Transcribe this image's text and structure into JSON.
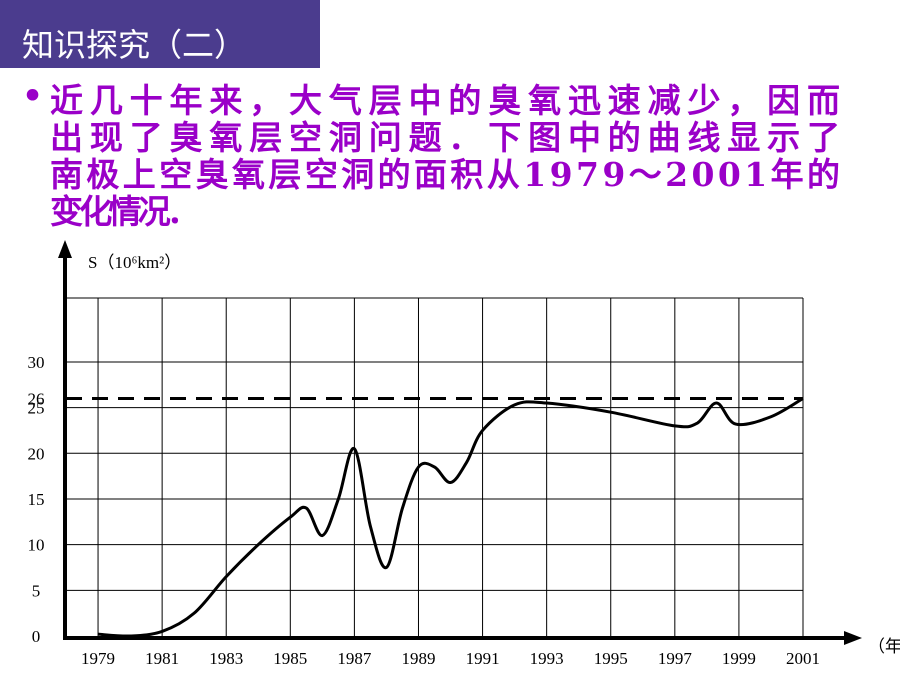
{
  "header": {
    "title": "知识探究（二）"
  },
  "body": {
    "lines": [
      "近几十年来，大气层中的臭氧迅速减少，因而",
      "出现了臭氧层空洞问题．下图中的曲线显示了",
      "南极上空臭氧层空洞的面积从1979～2001年的",
      "变化情况．"
    ]
  },
  "chart_data": {
    "type": "line",
    "y_label": "S（10⁶km²）",
    "x_label": "（年",
    "x": [
      1979,
      1980,
      1981,
      1982,
      1983,
      1984,
      1985,
      1985.5,
      1986,
      1986.5,
      1987,
      1987.5,
      1988,
      1988.5,
      1989,
      1989.5,
      1990,
      1990.5,
      1991,
      1992,
      1993,
      1995,
      1997,
      1997.7,
      1998.3,
      1998.9,
      2000,
      2001
    ],
    "values": [
      0.2,
      0,
      0.5,
      2.5,
      6.5,
      10,
      13,
      14,
      11,
      15,
      20.5,
      12,
      7.5,
      14,
      18.5,
      18.5,
      16.8,
      19,
      22.5,
      25.3,
      25.5,
      24.5,
      23,
      23.3,
      25.5,
      23.2,
      24,
      26
    ],
    "color": "#000000",
    "xlim": [
      1978,
      2001
    ],
    "ylim": [
      0,
      37
    ],
    "xticks": [
      1979,
      1981,
      1983,
      1985,
      1987,
      1989,
      1991,
      1993,
      1995,
      1997,
      1999,
      2001
    ],
    "yticks": [
      0,
      5,
      10,
      15,
      20,
      25,
      26,
      30
    ],
    "reference_line": 26,
    "grid": true
  }
}
